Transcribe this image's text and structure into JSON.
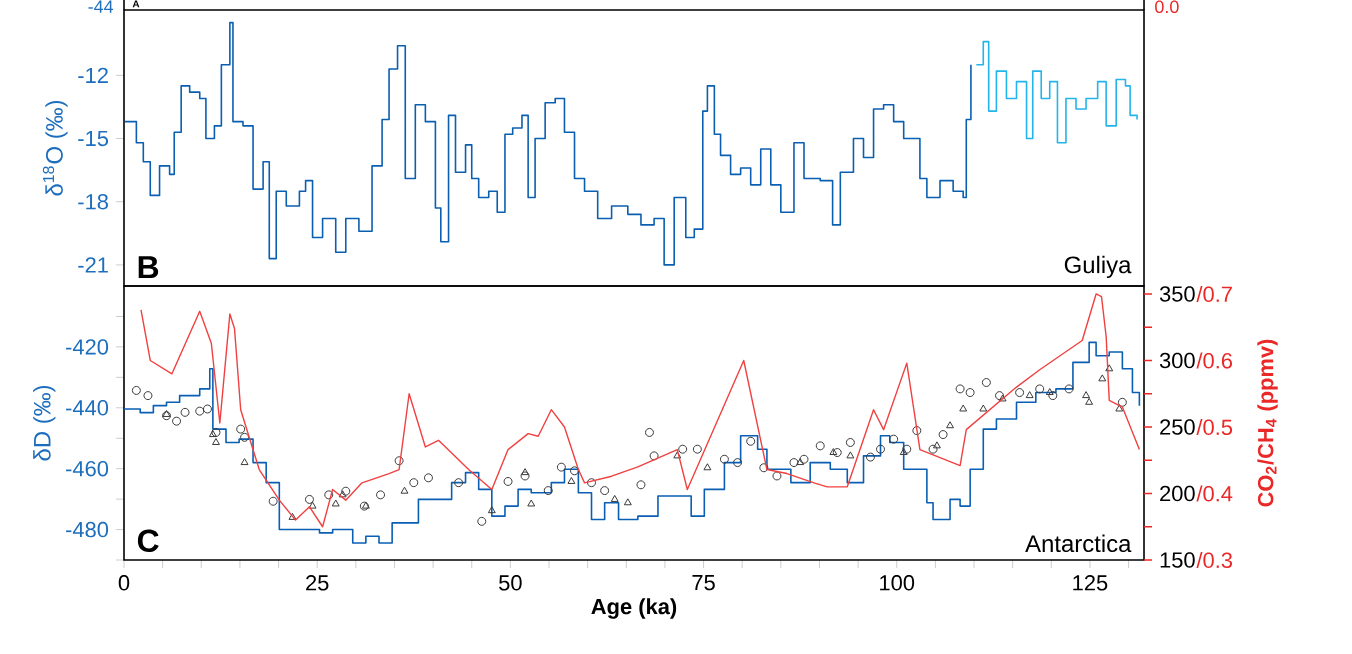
{
  "chart_data": [
    {
      "type": "other",
      "annotations": [
        "A",
        "-44",
        "0.0"
      ]
    },
    {
      "type": "step",
      "ylabel": "δ$^{18}$O (‰)",
      "annotations": [
        "B",
        "Guliya"
      ],
      "xlim": [
        0,
        132
      ],
      "ylim": [
        -22,
        -8.9
      ],
      "yticks": [
        -21,
        -18,
        -15,
        -12
      ],
      "tick_labels": "y",
      "series": [
        {
          "color": "#0b5fb0",
          "x": [
            0.1,
            1.6,
            2.5,
            3.4,
            4.6,
            5.9,
            6.5,
            7.4,
            8.5,
            9.8,
            10.6,
            11.7,
            12.6,
            13.7,
            14.1,
            15.4,
            16.7,
            18.0,
            18.8,
            19.7,
            21.0,
            22.7,
            23.5,
            24.4,
            25.7,
            27.4,
            28.7,
            30.4,
            32.1,
            33.4,
            34.3,
            35.4,
            36.4,
            37.7,
            39.0,
            40.3,
            41.0,
            42.0,
            42.9,
            44.2,
            45.0,
            45.9,
            47.2,
            48.3,
            49.3,
            50.3,
            51.5,
            52.3,
            53.2,
            54.5,
            55.8,
            57.0,
            58.3,
            59.6,
            61.3,
            63.1,
            65.2,
            66.9,
            68.6,
            69.9,
            71.2,
            72.7,
            73.8,
            74.9,
            75.5,
            76.4,
            77.2,
            78.5,
            79.8,
            81.1,
            82.4,
            83.7,
            85.0,
            86.7,
            88.0,
            90.1,
            91.7,
            92.7,
            94.4,
            95.7,
            97.0,
            98.3,
            99.6,
            100.9,
            102.1,
            103.0,
            103.9,
            105.6,
            107.3,
            108.6,
            109.0,
            109.6
          ],
          "values": [
            -14.2,
            -15.2,
            -16.1,
            -17.7,
            -16.3,
            -16.7,
            -14.7,
            -12.5,
            -12.8,
            -13.1,
            -15.0,
            -14.4,
            -11.5,
            -9.5,
            -14.2,
            -14.4,
            -17.4,
            -16.1,
            -20.7,
            -17.5,
            -18.2,
            -17.5,
            -17.0,
            -19.7,
            -18.8,
            -20.4,
            -18.8,
            -19.4,
            -16.3,
            -14.1,
            -11.7,
            -10.6,
            -16.9,
            -13.4,
            -14.2,
            -18.3,
            -19.9,
            -13.9,
            -16.6,
            -15.3,
            -16.9,
            -17.8,
            -17.5,
            -18.5,
            -14.8,
            -14.5,
            -13.9,
            -17.8,
            -15.0,
            -13.3,
            -13.1,
            -14.7,
            -16.9,
            -17.5,
            -18.8,
            -18.2,
            -18.6,
            -19.1,
            -18.8,
            -21.0,
            -17.8,
            -19.7,
            -19.3,
            -13.7,
            -12.5,
            -14.8,
            -15.8,
            -16.7,
            -16.4,
            -17.2,
            -15.5,
            -17.2,
            -18.5,
            -15.2,
            -16.9,
            -17.0,
            -19.1,
            -16.6,
            -15.0,
            -15.9,
            -13.6,
            -13.4,
            -14.2,
            -15.0,
            -15.0,
            -16.9,
            -17.8,
            -17.0,
            -17.5,
            -17.8,
            -14.1,
            -11.5
          ]
        },
        {
          "color": "#22b4ea",
          "x": [
            110.3,
            111.2,
            111.9,
            112.9,
            114.2,
            115.5,
            116.8,
            117.6,
            118.7,
            119.8,
            120.8,
            121.9,
            123.2,
            124.5,
            126.0,
            127.1,
            128.4,
            129.6,
            130.2,
            131.1
          ],
          "values": [
            -11.5,
            -10.4,
            -13.7,
            -11.8,
            -13.1,
            -12.3,
            -15.0,
            -11.8,
            -13.1,
            -12.3,
            -15.2,
            -13.1,
            -13.6,
            -13.1,
            -12.3,
            -14.4,
            -12.2,
            -12.5,
            -13.9,
            -14.1
          ]
        }
      ]
    },
    {
      "type": "step",
      "xlabel": "Age (ka)",
      "ylabel": "δD (‰)",
      "y2label": "CO$_{2}$/CH$_{4}$ (ppmv)",
      "annotations": [
        "C",
        "Antarctica"
      ],
      "xlim": [
        0,
        132
      ],
      "ylim": [
        -490,
        -400
      ],
      "y2lim": [
        150,
        356
      ],
      "xticks": [
        0,
        {
          "value": 5,
          "label": null
        },
        {
          "value": 10,
          "label": null
        },
        {
          "value": 15,
          "label": null
        },
        {
          "value": 20,
          "label": null
        },
        25,
        {
          "value": 30,
          "label": null
        },
        {
          "value": 35,
          "label": null
        },
        {
          "value": 40,
          "label": null
        },
        {
          "value": 45,
          "label": null
        },
        50,
        {
          "value": 55,
          "label": null
        },
        {
          "value": 60,
          "label": null
        },
        {
          "value": 65,
          "label": null
        },
        {
          "value": 70,
          "label": null
        },
        75,
        {
          "value": 80,
          "label": null
        },
        {
          "value": 85,
          "label": null
        },
        {
          "value": 90,
          "label": null
        },
        {
          "value": 95,
          "label": null
        },
        100,
        {
          "value": 105,
          "label": null
        },
        {
          "value": 110,
          "label": null
        },
        {
          "value": 115,
          "label": null
        },
        {
          "value": 120,
          "label": null
        },
        125,
        {
          "value": 130,
          "label": null
        }
      ],
      "yticks": [
        {
          "value": -490,
          "label": null
        },
        -480,
        {
          "value": -470,
          "label": null
        },
        -460,
        {
          "value": -450,
          "label": null
        },
        -440,
        {
          "value": -430,
          "label": null
        },
        -420,
        {
          "value": -410,
          "label": null
        }
      ],
      "y2ticks": [
        150,
        {
          "value": 175,
          "label": null
        },
        200,
        {
          "value": 225,
          "label": null
        },
        250,
        {
          "value": 275,
          "label": null
        },
        300,
        {
          "value": 325,
          "label": null
        },
        350
      ],
      "y3lim": [
        0.3,
        0.712
      ],
      "y3ticks": [
        {
          "value": 0.3,
          "label": "/0.3"
        },
        {
          "value": 0.4,
          "label": "/0.4"
        },
        {
          "value": 0.5,
          "label": "/0.5"
        },
        {
          "value": 0.6,
          "label": "/0.6"
        },
        {
          "value": 0.7,
          "label": "/0.7"
        }
      ],
      "series": [
        {
          "type": "step",
          "color": "#0a5fb4",
          "x": [
            0,
            2.1,
            3.8,
            5.5,
            7.2,
            9.8,
            11.1,
            11.5,
            13.2,
            14.9,
            16.7,
            18.4,
            20.1,
            22.7,
            25.3,
            27.0,
            29.6,
            31.3,
            33.0,
            34.7,
            36.4,
            38.1,
            39.9,
            42.4,
            44.2,
            45.9,
            47.6,
            49.3,
            51.0,
            52.7,
            55.3,
            57.0,
            58.8,
            60.5,
            62.2,
            64.0,
            66.5,
            69.1,
            70.8,
            73.4,
            75.1,
            77.7,
            79.8,
            82.0,
            83.2,
            86.3,
            88.8,
            91.4,
            93.6,
            95.7,
            97.9,
            99.1,
            100.9,
            102.6,
            103.9,
            104.7,
            106.9,
            108.2,
            109.5,
            111.2,
            112.9,
            115.5,
            118.0,
            120.6,
            122.8,
            124.9,
            125.8,
            127.5,
            129.2,
            130.5,
            131.4
          ],
          "values": [
            -440.4,
            -441.6,
            -439.3,
            -438.2,
            -436.0,
            -433.8,
            -427.2,
            -447.0,
            -451.4,
            -450.3,
            -458.0,
            -464.6,
            -480.0,
            -480.0,
            -481.1,
            -480.0,
            -484.4,
            -482.2,
            -484.4,
            -477.8,
            -477.8,
            -470.1,
            -470.1,
            -464.6,
            -461.3,
            -466.8,
            -475.6,
            -472.3,
            -466.8,
            -467.9,
            -464.6,
            -460.2,
            -467.9,
            -476.7,
            -471.2,
            -476.7,
            -475.6,
            -469.0,
            -469.0,
            -475.6,
            -466.8,
            -458.0,
            -449.2,
            -453.6,
            -460.2,
            -464.6,
            -458.0,
            -460.2,
            -464.6,
            -455.8,
            -449.2,
            -451.4,
            -460.2,
            -460.2,
            -471.2,
            -476.7,
            -470.1,
            -472.3,
            -460.2,
            -447.0,
            -443.7,
            -438.2,
            -435.0,
            -433.8,
            -425.1,
            -418.5,
            -422.9,
            -421.7,
            -427.2,
            -435.0,
            -439.3
          ]
        },
        {
          "type": "line",
          "axis": "y2",
          "color": "#f04040",
          "x": [
            2.2,
            3.4,
            6.2,
            9.8,
            11.3,
            12.4,
            13.7,
            14.3,
            15.1,
            17.5,
            20.1,
            22.2,
            24.0,
            25.7,
            27.0,
            28.7,
            30.8,
            34.3,
            35.6,
            36.9,
            39.0,
            40.7,
            44.6,
            47.6,
            49.7,
            52.3,
            53.6,
            55.3,
            57.0,
            58.8,
            59.6,
            63.1,
            66.5,
            71.6,
            72.9,
            80.2,
            83.2,
            85.8,
            89.3,
            91.0,
            93.6,
            97.0,
            98.3,
            101.3,
            103.0,
            108.2,
            109.0,
            115.5,
            118.5,
            124.0,
            125.8,
            126.5,
            127.1,
            127.5,
            129.2,
            131.4
          ],
          "values": [
            338,
            300,
            290,
            337,
            313,
            253,
            335,
            324,
            263,
            218,
            195,
            180,
            190,
            175,
            203,
            195,
            208,
            215,
            218,
            275,
            235,
            240,
            218,
            203,
            233,
            245,
            243,
            263,
            250,
            218,
            208,
            213,
            220,
            233,
            203,
            300,
            218,
            215,
            208,
            205,
            205,
            263,
            248,
            298,
            233,
            221,
            248,
            280,
            293,
            315,
            350,
            348,
            318,
            270,
            265,
            233
          ]
        },
        {
          "type": "scatter",
          "marker": "circle",
          "color": "#3a3a3a",
          "x": [
            1.6,
            3.1,
            5.5,
            6.8,
            7.9,
            9.8,
            10.8,
            11.9,
            15.1,
            15.6,
            19.3,
            24.0,
            26.5,
            28.7,
            31.1,
            33.2,
            35.6,
            37.5,
            39.4,
            43.3,
            46.3,
            49.7,
            51.9,
            54.9,
            56.6,
            58.3,
            60.5,
            62.2,
            66.9,
            68.0,
            68.6,
            72.3,
            74.2,
            77.7,
            79.4,
            81.1,
            82.8,
            84.5,
            86.7,
            88.0,
            90.1,
            92.3,
            94.0,
            96.6,
            97.9,
            99.6,
            101.3,
            102.6,
            104.7,
            106.0,
            108.2,
            109.5,
            111.6,
            113.3,
            115.9,
            118.5,
            120.2,
            122.3,
            129.2
          ],
          "values": [
            -434.3,
            -436.0,
            -442.6,
            -444.4,
            -441.5,
            -441.1,
            -440.4,
            -448.1,
            -447.0,
            -449.7,
            -470.7,
            -470.1,
            -468.6,
            -467.4,
            -472.3,
            -468.6,
            -457.4,
            -464.6,
            -463.0,
            -464.6,
            -477.3,
            -464.2,
            -462.4,
            -467.2,
            -459.5,
            -460.7,
            -464.6,
            -467.2,
            -465.3,
            -448.1,
            -455.8,
            -453.6,
            -453.6,
            -456.9,
            -458.0,
            -451.0,
            -459.7,
            -462.4,
            -458.0,
            -456.9,
            -452.5,
            -454.7,
            -451.4,
            -456.2,
            -453.6,
            -450.3,
            -453.6,
            -447.5,
            -453.6,
            -448.8,
            -433.8,
            -435.0,
            -431.7,
            -436.0,
            -435.0,
            -433.8,
            -436.0,
            -433.8,
            -438.2
          ]
        },
        {
          "type": "scatter",
          "marker": "triangle",
          "color": "#3a3a3a",
          "x": [
            5.5,
            11.5,
            11.9,
            15.6,
            21.8,
            24.4,
            27.4,
            28.3,
            31.3,
            36.3,
            47.6,
            51.9,
            52.7,
            57.9,
            63.5,
            65.2,
            71.6,
            75.5,
            87.5,
            91.8,
            94.0,
            100.9,
            105.2,
            106.9,
            108.6,
            111.2,
            113.7,
            117.2,
            119.8,
            124.5,
            124.9,
            126.6,
            127.5,
            128.8
          ],
          "values": [
            -442.2,
            -448.8,
            -451.4,
            -458.0,
            -476.0,
            -472.3,
            -471.6,
            -468.6,
            -472.3,
            -467.4,
            -473.8,
            -461.3,
            -471.6,
            -464.2,
            -470.1,
            -471.2,
            -455.8,
            -459.7,
            -458.0,
            -454.7,
            -455.8,
            -454.7,
            -452.5,
            -445.9,
            -440.4,
            -440.4,
            -437.1,
            -436.0,
            -435.0,
            -436.0,
            -438.2,
            -430.5,
            -427.2,
            -440.4
          ]
        }
      ]
    }
  ]
}
